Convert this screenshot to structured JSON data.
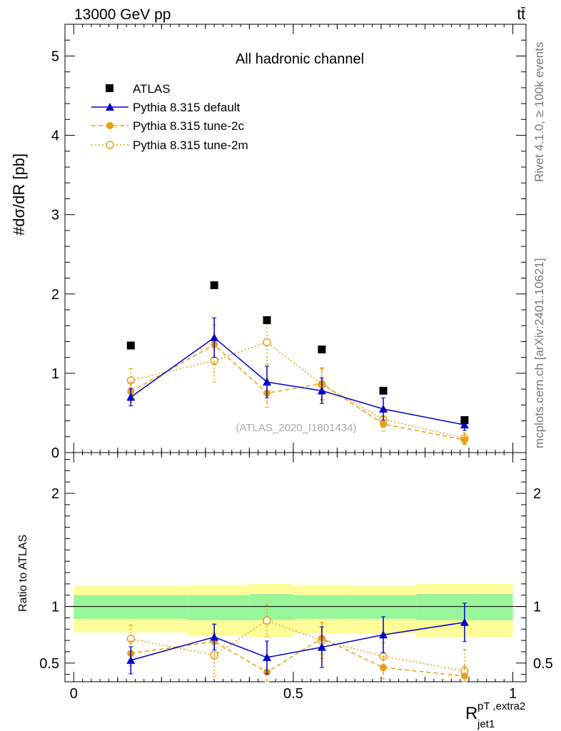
{
  "header": {
    "energy_label": "13000 GeV pp",
    "process_label": "tt̄"
  },
  "side": {
    "rivet_label": "Rivet 4.1.0, ≥ 100k events",
    "source_label": "mcplots.cern.ch [arXiv:2401.10621]"
  },
  "chart_data": [
    {
      "type": "line",
      "title": "All hadronic channel",
      "watermark": "(ATLAS_2020_I1801434)",
      "ylabel": "#dσ/dR [pb]",
      "ylim": [
        0,
        5.4
      ],
      "yticks": [
        0,
        1,
        2,
        3,
        4,
        5
      ],
      "yticklabels": [
        "0",
        "1",
        "2",
        "3",
        "4",
        "5"
      ],
      "x": [
        0.13,
        0.32,
        0.44,
        0.565,
        0.705,
        0.89
      ],
      "legend": [
        "ATLAS",
        "Pythia 8.315 default",
        "Pythia 8.315 tune-2c",
        "Pythia 8.315 tune-2m"
      ],
      "series": [
        {
          "name": "ATLAS",
          "values": [
            1.35,
            2.11,
            1.67,
            1.3,
            0.78,
            0.41
          ],
          "errors": [
            0,
            0,
            0,
            0,
            0,
            0
          ],
          "color": "#000000"
        },
        {
          "name": "Pythia 8.315 default",
          "values": [
            0.7,
            1.45,
            0.89,
            0.78,
            0.55,
            0.35
          ],
          "errors": [
            0.11,
            0.25,
            0.2,
            0.16,
            0.14,
            0.07
          ],
          "color": "#0000cc"
        },
        {
          "name": "Pythia 8.315 tune-2c",
          "values": [
            0.77,
            1.36,
            0.75,
            0.87,
            0.36,
            0.16
          ],
          "errors": [
            0.12,
            0.25,
            0.18,
            0.2,
            0.09,
            0.06
          ],
          "color": "#e8a010"
        },
        {
          "name": "Pythia 8.315 tune-2m",
          "values": [
            0.91,
            1.16,
            1.39,
            0.86,
            0.42,
            0.18
          ],
          "errors": [
            0.15,
            0.27,
            0.28,
            0.2,
            0.1,
            0.07
          ],
          "color": "#e8a010"
        }
      ]
    },
    {
      "type": "line",
      "ylabel": "Ratio to ATLAS",
      "xlabel": "R_jet1^pT,extra2",
      "ylim": [
        0.335,
        2.36
      ],
      "xlim": [
        -0.02,
        1.03
      ],
      "yticks": [
        0.5,
        1,
        2
      ],
      "yticklabels": [
        "0.5",
        "1",
        "2"
      ],
      "xticks": [
        0,
        0.5,
        1
      ],
      "xticklabels": [
        "0",
        "0.5",
        "1"
      ],
      "x": [
        0.13,
        0.32,
        0.44,
        0.565,
        0.705,
        0.89
      ],
      "bands": {
        "edges": [
          0,
          0.26,
          0.4,
          0.5,
          0.63,
          0.78,
          1.0
        ],
        "inner": [
          [
            0.89,
            1.1
          ],
          [
            0.88,
            1.1
          ],
          [
            0.88,
            1.11
          ],
          [
            0.89,
            1.1
          ],
          [
            0.89,
            1.1
          ],
          [
            0.88,
            1.11
          ]
        ],
        "outer": [
          [
            0.77,
            1.18
          ],
          [
            0.74,
            1.19
          ],
          [
            0.73,
            1.2
          ],
          [
            0.76,
            1.19
          ],
          [
            0.76,
            1.18
          ],
          [
            0.73,
            1.2
          ]
        ],
        "inner_color": "#99f599",
        "outer_color": "#fdfd9a"
      },
      "series": [
        {
          "name": "Pythia 8.315 default",
          "values": [
            0.525,
            0.73,
            0.55,
            0.64,
            0.75,
            0.86
          ],
          "errors": [
            0.12,
            0.115,
            0.145,
            0.18,
            0.16,
            0.17
          ],
          "color": "#0000cc"
        },
        {
          "name": "Pythia 8.315 tune-2c",
          "values": [
            0.585,
            0.69,
            0.42,
            0.72,
            0.46,
            0.385
          ],
          "errors": [
            0.11,
            0.15,
            0.13,
            0.14,
            0.1,
            0.09
          ],
          "color": "#e8a010"
        },
        {
          "name": "Pythia 8.315 tune-2m",
          "values": [
            0.715,
            0.57,
            0.875,
            0.7,
            0.56,
            0.43
          ],
          "errors": [
            0.12,
            0.19,
            0.14,
            0.16,
            0.12,
            0.19
          ],
          "color": "#e8a010"
        }
      ]
    }
  ]
}
